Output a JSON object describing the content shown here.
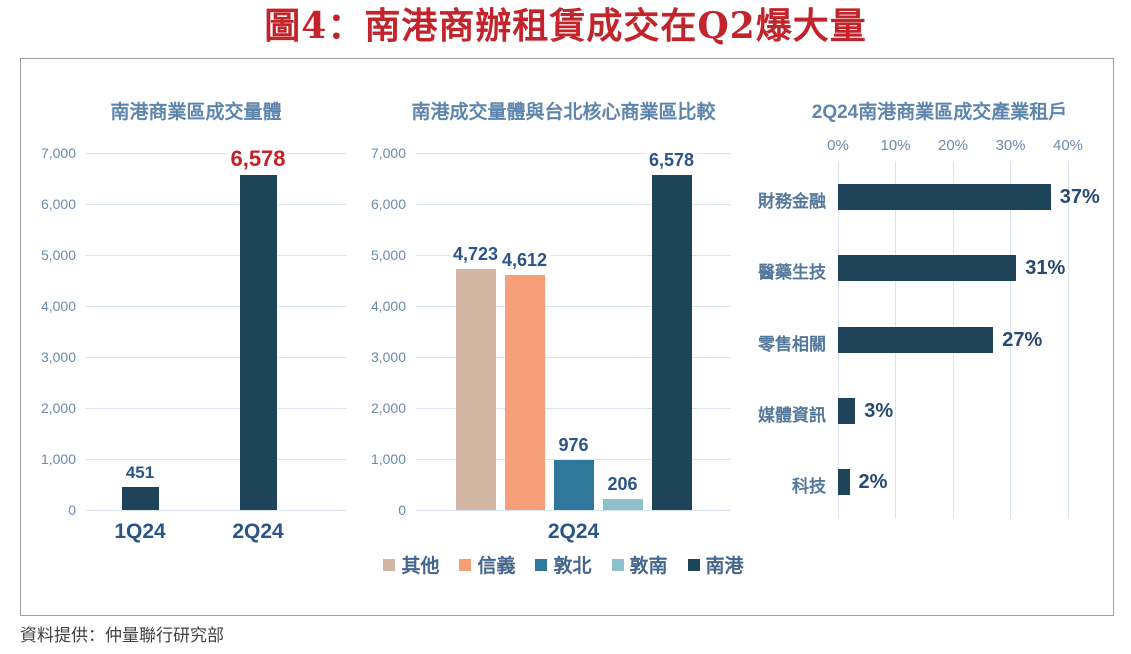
{
  "page": {
    "title": "圖4：南港商辦租賃成交在Q2爆大量",
    "source_note": "資料提供：仲量聯行研究部"
  },
  "colors": {
    "title_red": "#C3242B",
    "value_red": "#C42127",
    "navy_bar": "#1E4459",
    "tan_bar": "#D2B6A3",
    "salmon_bar": "#F59E77",
    "teal_bar": "#30789B",
    "light_blue_bar": "#8FC0CE",
    "chart_title_blue": "#5E86AC",
    "tick_blue": "#6C89AE",
    "label_navy": "#2B5587",
    "gridline": "#D9E4EF"
  },
  "chart_data": [
    {
      "type": "bar",
      "title": "南港商業區成交量體",
      "categories": [
        "1Q24",
        "2Q24"
      ],
      "values": [
        451,
        6578
      ],
      "value_labels": [
        "451",
        "6,578"
      ],
      "value_label_colors": [
        "#2B5587",
        "#C42127"
      ],
      "bar_color": "#1E4459",
      "ylim": [
        0,
        7000
      ],
      "yticks": [
        "0",
        "1,000",
        "2,000",
        "3,000",
        "4,000",
        "5,000",
        "6,000",
        "7,000"
      ],
      "grid": "horizontal",
      "legend_position": "none"
    },
    {
      "type": "bar",
      "title": "南港成交量體與台北核心商業區比較",
      "categories": [
        "2Q24"
      ],
      "series": [
        {
          "name": "其他",
          "value": 4723,
          "label": "4,723",
          "color": "#D2B6A3"
        },
        {
          "name": "信義",
          "value": 4612,
          "label": "4,612",
          "color": "#F59E77"
        },
        {
          "name": "敦北",
          "value": 976,
          "label": "976",
          "color": "#30789B"
        },
        {
          "name": "敦南",
          "value": 206,
          "label": "206",
          "color": "#8FC0CE"
        },
        {
          "name": "南港",
          "value": 6578,
          "label": "6,578",
          "color": "#1E4459"
        }
      ],
      "ylim": [
        0,
        7000
      ],
      "yticks": [
        "0",
        "1,000",
        "2,000",
        "3,000",
        "4,000",
        "5,000",
        "6,000",
        "7,000"
      ],
      "grid": "horizontal",
      "legend_position": "bottom"
    },
    {
      "type": "bar-horizontal",
      "title": "2Q24南港商業區成交產業租戶",
      "categories": [
        "財務金融",
        "醫藥生技",
        "零售相關",
        "媒體資訊",
        "科技"
      ],
      "values": [
        37,
        31,
        27,
        3,
        2
      ],
      "value_labels": [
        "37%",
        "31%",
        "27%",
        "3%",
        "2%"
      ],
      "bar_color": "#1E4459",
      "xlim": [
        0,
        40
      ],
      "xticks": [
        "0%",
        "10%",
        "20%",
        "30%",
        "40%"
      ],
      "grid": "vertical",
      "legend_position": "none"
    }
  ]
}
